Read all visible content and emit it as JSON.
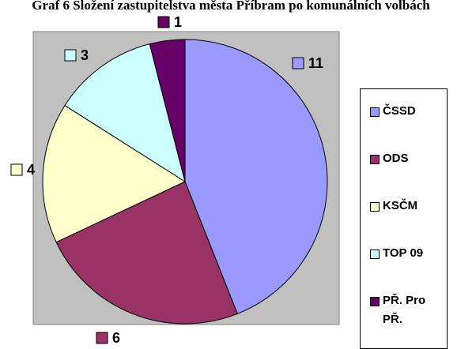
{
  "chart_data": {
    "type": "pie",
    "title": "Graf 6 Složení zastupitelstva města Příbram po komunálních volbách",
    "categories": [
      "ČSSD",
      "ODS",
      "KSČM",
      "TOP 09",
      "PŘ. Pro PŘ."
    ],
    "values": [
      11,
      6,
      4,
      3,
      1
    ],
    "colors": [
      "#9999ff",
      "#993366",
      "#ffffcc",
      "#ccffff",
      "#660066"
    ],
    "legend": "right"
  }
}
